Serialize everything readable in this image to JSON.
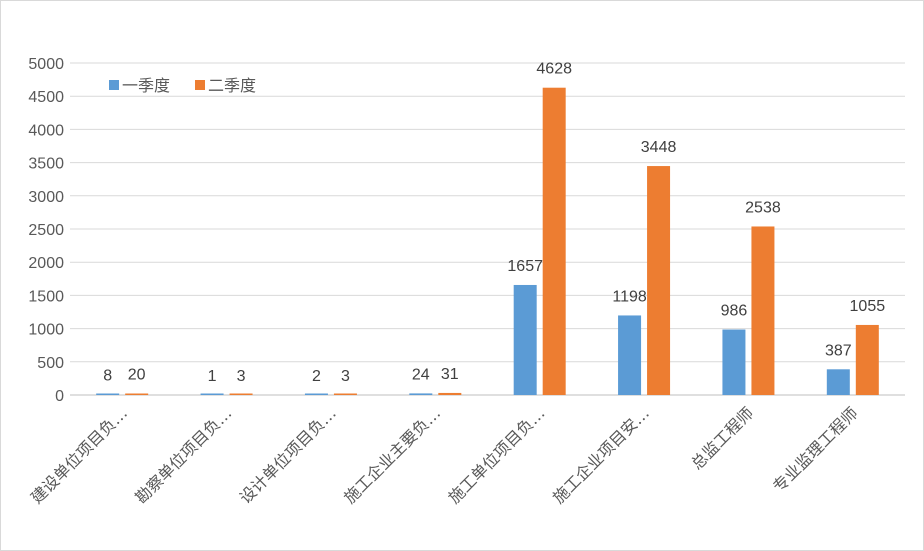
{
  "chart_data": {
    "type": "bar",
    "title": "",
    "xlabel": "",
    "ylabel": "",
    "categories": [
      "建设单位项目负…",
      "勘察单位项目负…",
      "设计单位项目负…",
      "施工企业主要负…",
      "施工单位项目负…",
      "施工企业项目安…",
      "总监工程师",
      "专业监理工程师"
    ],
    "series": [
      {
        "name": "一季度",
        "values": [
          8,
          1,
          2,
          24,
          1657,
          1198,
          986,
          387
        ],
        "color": "#5b9bd5"
      },
      {
        "name": "二季度",
        "values": [
          20,
          3,
          3,
          31,
          4628,
          3448,
          2538,
          1055
        ],
        "color": "#ed7d31"
      }
    ],
    "ylim": [
      0,
      5000
    ],
    "yticks": [
      0,
      500,
      1000,
      1500,
      2000,
      2500,
      3000,
      3500,
      4000,
      4500,
      5000
    ],
    "grid": true,
    "legend": "top-left",
    "data_labels": true
  }
}
